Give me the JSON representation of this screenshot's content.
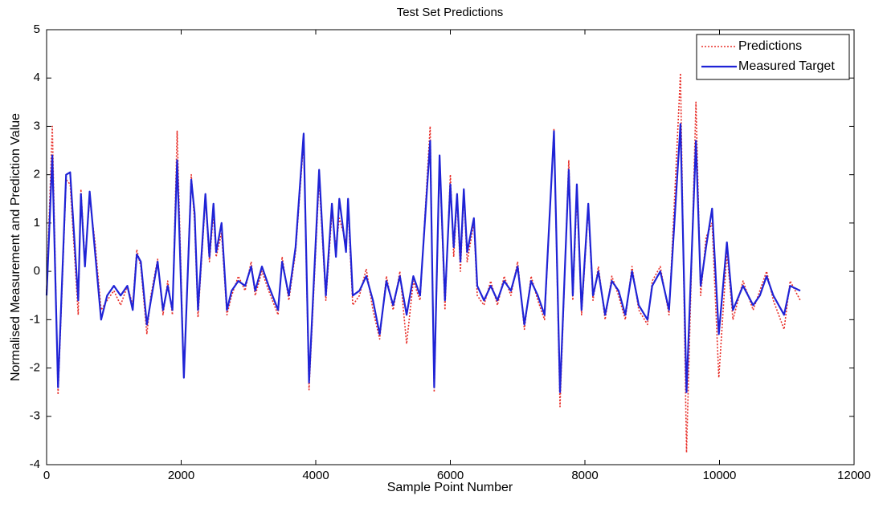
{
  "chart_data": {
    "type": "line",
    "title": "Test Set Predictions",
    "x_label": "Sample Point Number",
    "y_label": "Normalised Measurement and Prediction Value",
    "xlim": [
      0,
      12000
    ],
    "ylim": [
      -4,
      5
    ],
    "xticks": [
      0,
      2000,
      4000,
      6000,
      8000,
      10000,
      12000
    ],
    "yticks": [
      -4,
      -3,
      -2,
      -1,
      0,
      1,
      2,
      3,
      4,
      5
    ],
    "legend": "upper right",
    "x": [
      0,
      85,
      170,
      290,
      350,
      470,
      510,
      570,
      640,
      720,
      810,
      900,
      1000,
      1100,
      1200,
      1280,
      1340,
      1400,
      1490,
      1550,
      1650,
      1730,
      1800,
      1870,
      1940,
      2040,
      2150,
      2200,
      2250,
      2360,
      2420,
      2480,
      2520,
      2600,
      2680,
      2750,
      2850,
      2950,
      3040,
      3100,
      3200,
      3300,
      3440,
      3500,
      3600,
      3700,
      3820,
      3900,
      4050,
      4150,
      4240,
      4300,
      4350,
      4450,
      4480,
      4550,
      4650,
      4750,
      4850,
      4950,
      5050,
      5150,
      5250,
      5350,
      5450,
      5550,
      5700,
      5760,
      5840,
      5920,
      6000,
      6050,
      6100,
      6150,
      6200,
      6250,
      6350,
      6400,
      6500,
      6600,
      6700,
      6800,
      6900,
      7000,
      7100,
      7200,
      7300,
      7400,
      7540,
      7630,
      7760,
      7820,
      7880,
      7950,
      8050,
      8120,
      8200,
      8300,
      8400,
      8500,
      8600,
      8700,
      8800,
      8930,
      9000,
      9120,
      9250,
      9420,
      9510,
      9650,
      9720,
      9800,
      9890,
      9990,
      10110,
      10200,
      10350,
      10500,
      10600,
      10700,
      10800,
      10960,
      11050,
      11200
    ],
    "series": [
      {
        "name": "Predictions",
        "color": "#e8302a",
        "dash": "2,2",
        "values": [
          -0.4,
          3.0,
          -2.55,
          1.9,
          1.8,
          -0.9,
          1.7,
          0.2,
          1.5,
          0.6,
          -0.8,
          -0.6,
          -0.4,
          -0.7,
          -0.3,
          -0.7,
          0.45,
          0.1,
          -1.3,
          -0.5,
          0.25,
          -0.9,
          -0.2,
          -0.9,
          2.9,
          -2.2,
          2.0,
          1.0,
          -0.95,
          1.5,
          0.2,
          1.2,
          0.3,
          0.8,
          -0.9,
          -0.5,
          -0.1,
          -0.4,
          0.2,
          -0.5,
          0.0,
          -0.4,
          -0.9,
          0.3,
          -0.6,
          0.4,
          2.7,
          -2.45,
          1.9,
          -0.6,
          1.2,
          0.5,
          1.1,
          0.6,
          1.3,
          -0.7,
          -0.5,
          0.05,
          -0.8,
          -1.4,
          -0.1,
          -0.8,
          0.0,
          -1.5,
          -0.2,
          -0.6,
          3.0,
          -2.5,
          2.3,
          -0.8,
          2.0,
          0.3,
          1.5,
          0.0,
          1.6,
          0.2,
          1.0,
          -0.5,
          -0.7,
          -0.2,
          -0.7,
          -0.1,
          -0.5,
          0.2,
          -1.2,
          -0.1,
          -0.6,
          -1.0,
          2.95,
          -2.8,
          2.3,
          -0.6,
          1.6,
          -0.9,
          1.3,
          -0.6,
          0.1,
          -1.0,
          -0.1,
          -0.5,
          -1.0,
          0.1,
          -0.8,
          -1.1,
          -0.2,
          0.1,
          -0.9,
          4.1,
          -3.75,
          3.5,
          -0.5,
          0.7,
          1.0,
          -2.2,
          0.4,
          -1.0,
          -0.2,
          -0.8,
          -0.4,
          0.0,
          -0.6,
          -1.2,
          -0.2,
          -0.6
        ]
      },
      {
        "name": "Measured Target",
        "color": "#1f23d6",
        "values": [
          -0.5,
          2.4,
          -2.4,
          2.0,
          2.05,
          -0.6,
          1.6,
          0.1,
          1.65,
          0.4,
          -1.0,
          -0.5,
          -0.3,
          -0.5,
          -0.3,
          -0.8,
          0.35,
          0.2,
          -1.1,
          -0.6,
          0.2,
          -0.8,
          -0.3,
          -0.8,
          2.3,
          -2.2,
          1.9,
          1.2,
          -0.8,
          1.6,
          0.3,
          1.4,
          0.4,
          1.0,
          -0.8,
          -0.4,
          -0.2,
          -0.3,
          0.1,
          -0.4,
          0.1,
          -0.3,
          -0.8,
          0.2,
          -0.5,
          0.5,
          2.85,
          -2.3,
          2.1,
          -0.5,
          1.4,
          0.3,
          1.5,
          0.4,
          1.5,
          -0.5,
          -0.4,
          -0.1,
          -0.6,
          -1.3,
          -0.2,
          -0.7,
          -0.1,
          -0.9,
          -0.1,
          -0.5,
          2.7,
          -2.4,
          2.4,
          -0.6,
          1.8,
          0.5,
          1.6,
          0.2,
          1.7,
          0.4,
          1.1,
          -0.3,
          -0.6,
          -0.3,
          -0.6,
          -0.2,
          -0.4,
          0.1,
          -1.1,
          -0.2,
          -0.5,
          -0.9,
          2.9,
          -2.5,
          2.1,
          -0.5,
          1.8,
          -0.8,
          1.4,
          -0.5,
          0.0,
          -0.9,
          -0.2,
          -0.4,
          -0.9,
          0.0,
          -0.7,
          -1.0,
          -0.3,
          0.0,
          -0.8,
          3.05,
          -2.5,
          2.7,
          -0.3,
          0.5,
          1.3,
          -1.3,
          0.6,
          -0.8,
          -0.3,
          -0.7,
          -0.5,
          -0.1,
          -0.5,
          -0.9,
          -0.3,
          -0.4
        ]
      }
    ]
  }
}
